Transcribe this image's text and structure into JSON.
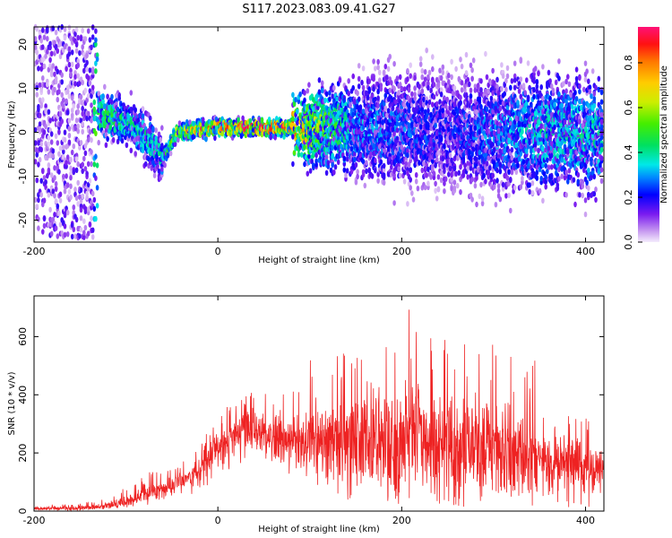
{
  "title": "S117.2023.083.09.41.G27",
  "chart_data": [
    {
      "type": "heatmap",
      "xlabel": "Height of straight line (km)",
      "ylabel": "Frequency (Hz)",
      "xlim": [
        -200,
        420
      ],
      "ylim": [
        -25,
        24
      ],
      "xticks": [
        -200,
        0,
        200,
        400
      ],
      "yticks": [
        -20,
        -10,
        0,
        10,
        20
      ],
      "colorbar": {
        "label": "Normalized spectral amplitude",
        "range": [
          0,
          0.96
        ],
        "ticks": [
          0.0,
          0.2,
          0.4,
          0.6,
          0.8
        ]
      },
      "ridge": {
        "description_points": [
          {
            "x": -125,
            "y": 4,
            "amp": 0.45
          },
          {
            "x": -95,
            "y": 2,
            "amp": 0.35
          },
          {
            "x": -75,
            "y": -2,
            "amp": 0.4
          },
          {
            "x": -60,
            "y": -6,
            "amp": 0.35
          },
          {
            "x": -45,
            "y": 0,
            "amp": 0.6
          },
          {
            "x": 0,
            "y": 1,
            "amp": 0.85
          },
          {
            "x": 50,
            "y": 1,
            "amp": 0.85
          },
          {
            "x": 80,
            "y": 1,
            "amp": 0.75
          },
          {
            "x": 150,
            "y": 1,
            "amp": 0.3
          },
          {
            "x": 250,
            "y": 0,
            "amp": 0.2
          },
          {
            "x": 350,
            "y": 0,
            "amp": 0.35
          },
          {
            "x": 410,
            "y": -1,
            "amp": 0.35
          }
        ]
      }
    },
    {
      "type": "line",
      "xlabel": "Height of straight line (km)",
      "ylabel": "SNR (10 * v/v)",
      "xlim": [
        -200,
        420
      ],
      "ylim": [
        0,
        740
      ],
      "xticks": [
        -200,
        0,
        200,
        400
      ],
      "yticks": [
        0,
        200,
        400,
        600
      ],
      "series_color": "#ee2222",
      "envelope": {
        "x": [
          -200,
          -160,
          -130,
          -100,
          -80,
          -60,
          -40,
          -20,
          0,
          20,
          40,
          60,
          80,
          100,
          120,
          140,
          160,
          180,
          200,
          220,
          240,
          260,
          280,
          300,
          320,
          340,
          360,
          380,
          400,
          420
        ],
        "low": [
          0,
          0,
          5,
          10,
          20,
          30,
          40,
          60,
          110,
          150,
          160,
          150,
          120,
          100,
          60,
          30,
          20,
          20,
          15,
          15,
          15,
          15,
          15,
          15,
          15,
          15,
          10,
          10,
          10,
          10
        ],
        "mean": [
          10,
          10,
          15,
          30,
          60,
          80,
          100,
          140,
          220,
          270,
          280,
          260,
          240,
          250,
          260,
          260,
          260,
          250,
          250,
          240,
          230,
          230,
          230,
          220,
          220,
          210,
          180,
          170,
          160,
          150
        ],
        "high": [
          25,
          25,
          40,
          80,
          130,
          150,
          180,
          220,
          340,
          400,
          440,
          420,
          420,
          520,
          550,
          560,
          580,
          620,
          740,
          640,
          620,
          620,
          600,
          600,
          580,
          560,
          420,
          340,
          320,
          300
        ]
      }
    }
  ]
}
